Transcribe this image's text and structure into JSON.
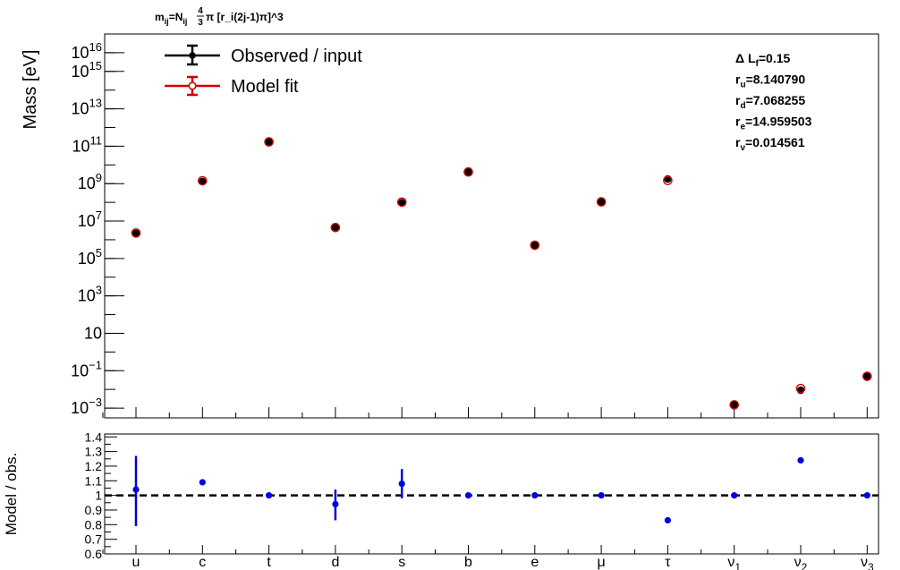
{
  "chart_data": [
    {
      "type": "scatter",
      "title": "m_{ij}=N_{ij} \\frac{4}{3}\\pi [r_i(2j-1)\\pi]^3",
      "title_parts": {
        "prefix": "m",
        "prefix_sub": "ij",
        "mid": "=N",
        "mid_sub": "ij",
        "frac_num": "4",
        "frac_den": "3",
        "suffix": "π [r_i(2j-1)π]^3"
      },
      "ylabel": "Mass [eV]",
      "yscale": "log",
      "ylim": [
        0.0003,
        1e+17
      ],
      "y_tick_labels": [
        {
          "value": 1e+16,
          "base": "10",
          "exp": "16"
        },
        {
          "value": 1000000000000000.0,
          "base": "10",
          "exp": "15"
        },
        {
          "value": 10000000000000.0,
          "base": "10",
          "exp": "13"
        },
        {
          "value": 100000000000.0,
          "base": "10",
          "exp": "11"
        },
        {
          "value": 1000000000.0,
          "base": "10",
          "exp": "9"
        },
        {
          "value": 10000000.0,
          "base": "10",
          "exp": "7"
        },
        {
          "value": 100000.0,
          "base": "10",
          "exp": "5"
        },
        {
          "value": 1000.0,
          "base": "10",
          "exp": "3"
        },
        {
          "value": 10,
          "base": "10",
          "exp": ""
        },
        {
          "value": 0.1,
          "base": "10",
          "exp": "−1"
        },
        {
          "value": 0.001,
          "base": "10",
          "exp": "−3"
        }
      ],
      "categories": [
        "u",
        "c",
        "t",
        "d",
        "s",
        "b",
        "e",
        "μ",
        "τ",
        "ν1",
        "ν2",
        "ν3"
      ],
      "series": [
        {
          "name": "Observed / input",
          "color": "#000000",
          "marker": "filled-circle",
          "values": [
            2200000.0,
            1300000000.0,
            170000000000.0,
            4700000.0,
            95000000.0,
            4200000000.0,
            510000.0,
            106000000.0,
            1780000000.0,
            0.0015,
            0.009,
            0.05
          ]
        },
        {
          "name": "Model fit",
          "color": "#cc0000",
          "marker": "open-circle",
          "values": [
            2300000.0,
            1420000000.0,
            170000000000.0,
            4500000.0,
            103000000.0,
            4200000000.0,
            510000.0,
            106000000.0,
            1480000000.0,
            0.0015,
            0.0112,
            0.05
          ]
        }
      ],
      "annotations": [
        {
          "main": "Δ L",
          "sub": "f",
          "value": "=0.15"
        },
        {
          "main": "r",
          "sub": "u",
          "value": "=8.140790"
        },
        {
          "main": "r",
          "sub": "d",
          "value": "=7.068255"
        },
        {
          "main": "r",
          "sub": "e",
          "value": "=14.959503"
        },
        {
          "main": "r",
          "sub": "ν",
          "value": "=0.014561"
        }
      ],
      "legend_position": "top-left"
    },
    {
      "type": "scatter",
      "ylabel": "Model / obs.",
      "ylim": [
        0.6,
        1.42
      ],
      "y_ticks": [
        0.6,
        0.7,
        0.8,
        0.9,
        1,
        1.1,
        1.2,
        1.3,
        1.4
      ],
      "reference_line": 1.0,
      "categories": [
        "u",
        "c",
        "t",
        "d",
        "s",
        "b",
        "e",
        "μ",
        "τ",
        "ν1",
        "ν2",
        "ν3"
      ],
      "category_labels": [
        {
          "main": "u",
          "sub": ""
        },
        {
          "main": "c",
          "sub": ""
        },
        {
          "main": "t",
          "sub": ""
        },
        {
          "main": "d",
          "sub": ""
        },
        {
          "main": "s",
          "sub": ""
        },
        {
          "main": "b",
          "sub": ""
        },
        {
          "main": "e",
          "sub": ""
        },
        {
          "main": "μ",
          "sub": ""
        },
        {
          "main": "τ",
          "sub": ""
        },
        {
          "main": "ν",
          "sub": "1"
        },
        {
          "main": "ν",
          "sub": "2"
        },
        {
          "main": "ν",
          "sub": "3"
        }
      ],
      "series": [
        {
          "name": "Model / obs.",
          "color": "#0000dd",
          "values": [
            1.04,
            1.09,
            1.0,
            0.94,
            1.08,
            1.0,
            1.0,
            1.0,
            0.83,
            1.0,
            1.24,
            1.0
          ],
          "err_low": [
            0.25,
            0,
            0,
            0.11,
            0.1,
            0,
            0,
            0,
            0,
            0,
            0,
            0
          ],
          "err_high": [
            0.23,
            0,
            0,
            0.1,
            0.1,
            0,
            0,
            0,
            0,
            0,
            0,
            0
          ]
        }
      ]
    }
  ]
}
